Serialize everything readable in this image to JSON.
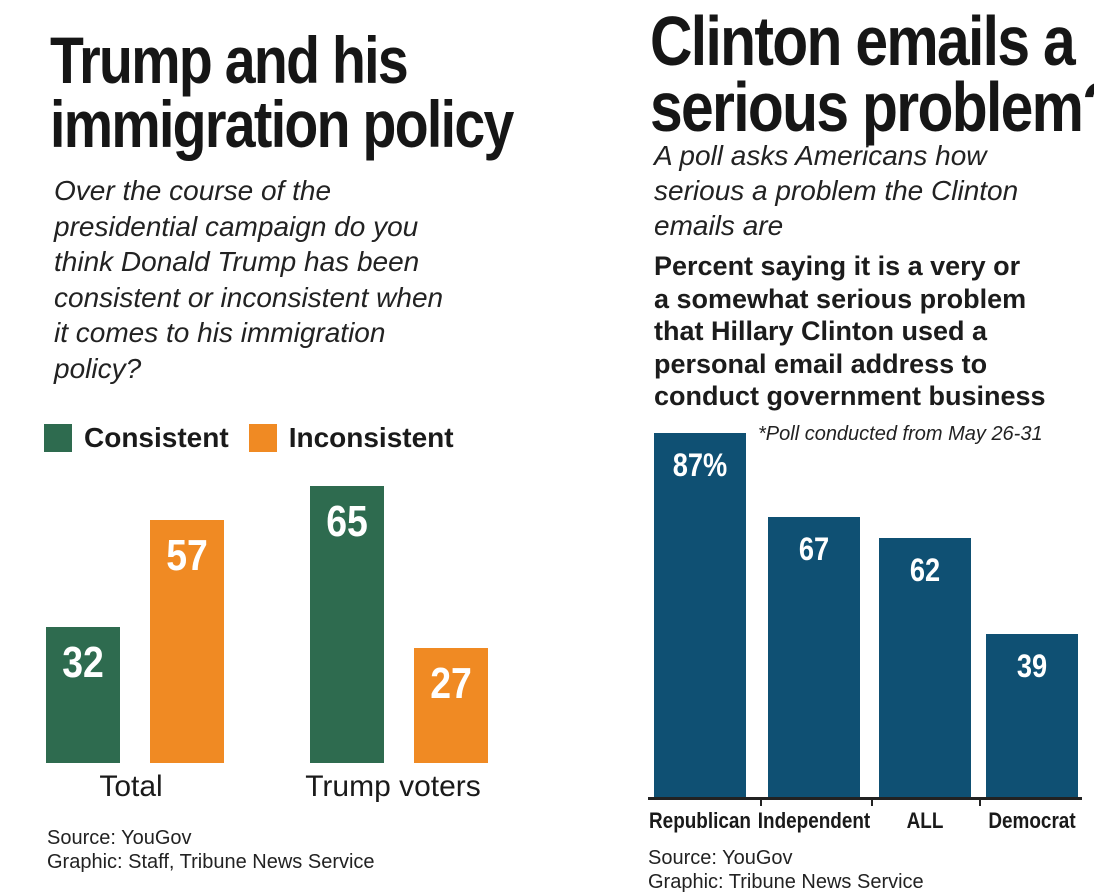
{
  "left_panel": {
    "title": [
      "Trump and his",
      "immigration policy"
    ],
    "subtitle": [
      "Over the course of the",
      "presidential campaign do you",
      "think Donald Trump has been",
      "consistent or inconsistent when",
      "it comes to his immigration",
      "policy?"
    ],
    "legend": [
      {
        "label": "Consistent",
        "color": "#2e6b4f"
      },
      {
        "label": "Inconsistent",
        "color": "#f08a23"
      }
    ],
    "source": "Source: YouGov",
    "graphic": "Graphic: Staff, Tribune News Service"
  },
  "right_panel": {
    "title": [
      "Clinton emails a",
      "serious problem?"
    ],
    "subtitle": [
      "A poll asks Americans how",
      "serious a problem the Clinton",
      "emails are"
    ],
    "question": [
      "Percent saying it is a very or",
      "a somewhat serious problem",
      "that Hillary Clinton used a",
      "personal email address to",
      "conduct government business"
    ],
    "footnote": "*Poll conducted from May 26-31",
    "source": "Source: YouGov",
    "graphic": "Graphic: Tribune News Service"
  },
  "chart_data": [
    {
      "type": "bar",
      "categories": [
        "Total",
        "Trump voters"
      ],
      "series": [
        {
          "name": "Consistent",
          "values": [
            32,
            65
          ],
          "color": "#2e6b4f"
        },
        {
          "name": "Inconsistent",
          "values": [
            57,
            27
          ],
          "color": "#f08a23"
        }
      ],
      "value_labels": [
        [
          "32",
          "65"
        ],
        [
          "57",
          "27"
        ]
      ],
      "ylim": [
        0,
        65
      ],
      "grid": false,
      "legend_position": "top"
    },
    {
      "type": "bar",
      "categories": [
        "Republican",
        "Independent",
        "ALL",
        "Democrat"
      ],
      "values": [
        87,
        67,
        62,
        39
      ],
      "value_labels": [
        "87%",
        "67",
        "62",
        "39"
      ],
      "color": "#0f5073",
      "ylim": [
        0,
        87
      ],
      "grid": false
    }
  ]
}
